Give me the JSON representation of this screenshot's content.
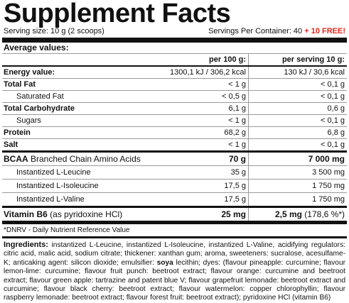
{
  "title": "Supplement Facts",
  "serving_size": "Serving size: 10 g (2 scoops)",
  "servings_label": "Servings Per Container: 40 ",
  "servings_free": "+ 10 FREE!",
  "average_values": "Average values:",
  "col_per100": "per 100 g:",
  "col_perserving": "per serving 10 g:",
  "rows": [
    {
      "name": "Energy value:",
      "per100": "1300,1 kJ / 306,2 kcal",
      "serving": "130 kJ / 30,6 kcal"
    },
    {
      "name": "Total Fat",
      "per100": "< 1 g",
      "serving": "< 0,1 g"
    },
    {
      "name": "Saturated Fat",
      "per100": "< 0,5 g",
      "serving": "< 0,1 g"
    },
    {
      "name": "Total Carbohydrate",
      "per100": "6,1 g",
      "serving": "0,6 g"
    },
    {
      "name": "Sugars",
      "per100": "< 1 g",
      "serving": "< 0,1 g"
    },
    {
      "name": "Protein",
      "per100": "68,2 g",
      "serving": "6,8 g"
    },
    {
      "name": "Salt",
      "per100": "< 1 g",
      "serving": "< 0,1 g"
    }
  ],
  "bcaa": {
    "name_bold": "BCAA",
    "name_rest": " Branched Chain Amino Acids",
    "per100": "70 g",
    "serving": "7 000 mg"
  },
  "bcaa_items": [
    {
      "name": "Instantized L-Leucine",
      "per100": "35 g",
      "serving": "3 500 mg"
    },
    {
      "name": "Instantized L-Isoleucine",
      "per100": "17,5 g",
      "serving": "1 750 mg"
    },
    {
      "name": "Instantized L-Valine",
      "per100": "17,5 g",
      "serving": "1 750 mg"
    }
  ],
  "vitamin": {
    "name_bold": "Vitamin B6",
    "name_rest": " (as pyridoxine HCl)",
    "per100": "25 mg",
    "serving_bold": "2,5 mg",
    "serving_rest": " (178,6 %*)"
  },
  "footnote": "*DNRV - Daily Nutrient Reference Value",
  "ingredients_label": "Ingredients:",
  "ingredients_a": " instantized L-Leucine, instantized L-Isoleucine, instantized L-Valine, acidifying regulators: citric acid, malic acid, sodium citrate; thickener: xanthan gum; aroma, sweeteners: sucralose, acesulfame-K; anticaking agent: silicon dioxide; emulsifier: ",
  "ingredients_soya": "soya",
  "ingredients_b": " lecithin; dyes: (flavour pineapple: curcumine; flavour lemon-lime: curcumine; flavour fruit punch: beetroot extract; flavour orange: curcumine and beetroot extract; flavour green apple: tartrazine and patent blue V; flavour grapefruit lemonade: beetroot extract and curcumine; flavour black cherry: beetroot extract; flavour watermelon: copper chlorophyllin; flavour raspberry lemonade: beetroot extract; flavour forest fruit: beetroot extract); pyridoxine HCl (vitamin B6)"
}
